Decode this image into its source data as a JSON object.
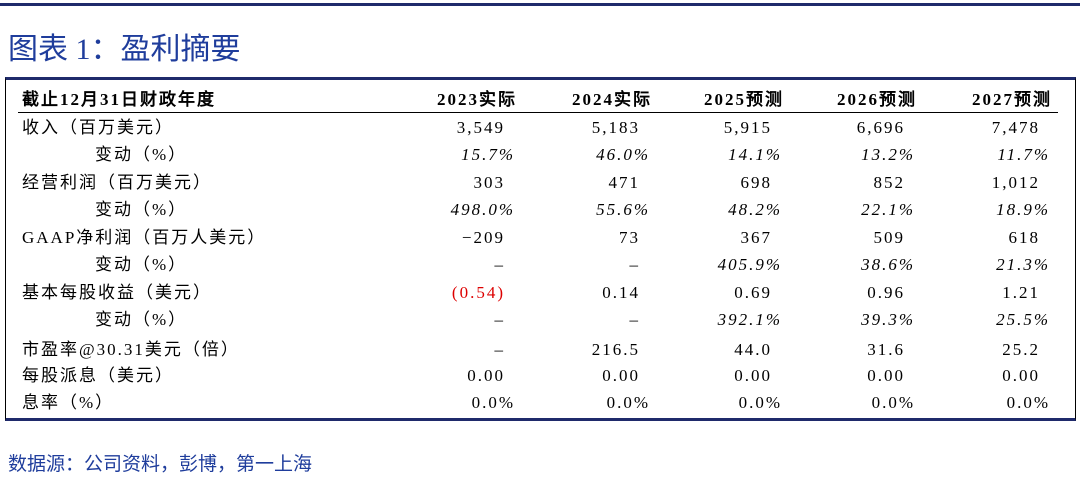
{
  "header": {
    "title": "图表 1：盈利摘要"
  },
  "table": {
    "columns": [
      "截止12月31日财政年度",
      "2023实际",
      "2024实际",
      "2025预测",
      "2026预测",
      "2027预测"
    ],
    "rows": [
      [
        "收入（百万美元）",
        "3,549",
        "5,183",
        "5,915",
        "6,696",
        "7,478"
      ],
      [
        "变动（%）",
        "15.7%",
        "46.0%",
        "14.1%",
        "13.2%",
        "11.7%"
      ],
      [
        "经营利润（百万美元）",
        "303",
        "471",
        "698",
        "852",
        "1,012"
      ],
      [
        "变动（%）",
        "498.0%",
        "55.6%",
        "48.2%",
        "22.1%",
        "18.9%"
      ],
      [
        "GAAP净利润（百万人美元）",
        "−209",
        "73",
        "367",
        "509",
        "618"
      ],
      [
        "变动（%）",
        "–",
        "–",
        "405.9%",
        "38.6%",
        "21.3%"
      ],
      [
        "基本每股收益（美元）",
        "(0.54)",
        "0.14",
        "0.69",
        "0.96",
        "1.21"
      ],
      [
        "变动（%）",
        "–",
        "–",
        "392.1%",
        "39.3%",
        "25.5%"
      ],
      [
        "市盈率@30.31美元（倍）",
        "–",
        "216.5",
        "44.0",
        "31.6",
        "25.2"
      ],
      [
        "每股派息（美元）",
        "0.00",
        "0.00",
        "0.00",
        "0.00",
        "0.00"
      ],
      [
        "息率（%）",
        "0.0%",
        "0.0%",
        "0.0%",
        "0.0%",
        "0.0%"
      ]
    ]
  },
  "footer": {
    "source": "数据源：公司资料，彭博，第一上海"
  }
}
